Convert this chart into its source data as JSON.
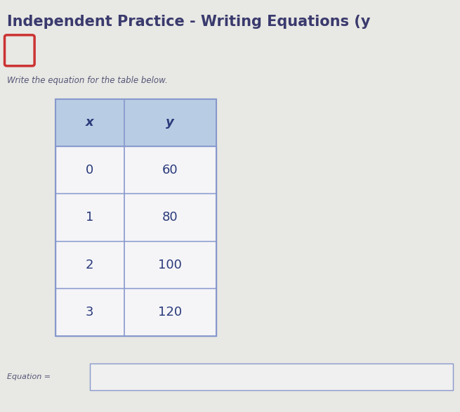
{
  "title": "Independent Practice - Writing Equations (y",
  "title_fontsize": 15,
  "title_color": "#3a3a6e",
  "subtitle": "Write the equation for the table below.",
  "subtitle_fontsize": 8.5,
  "subtitle_color": "#555577",
  "background_color": "#e8e8e4",
  "checkbox_color": "#cc3333",
  "table_headers": [
    "x",
    "y"
  ],
  "table_data": [
    [
      "0",
      "60"
    ],
    [
      "1",
      "80"
    ],
    [
      "2",
      "100"
    ],
    [
      "3",
      "120"
    ]
  ],
  "header_bg": "#b8cce4",
  "row_bg": "#f5f5f8",
  "table_border_color": "#8898cc",
  "table_text_color": "#2a3a7a",
  "equation_label": "Equation =",
  "equation_label_fontsize": 8,
  "equation_label_color": "#555577",
  "equation_box_color": "#f0f0f0",
  "equation_box_border": "#8898cc"
}
